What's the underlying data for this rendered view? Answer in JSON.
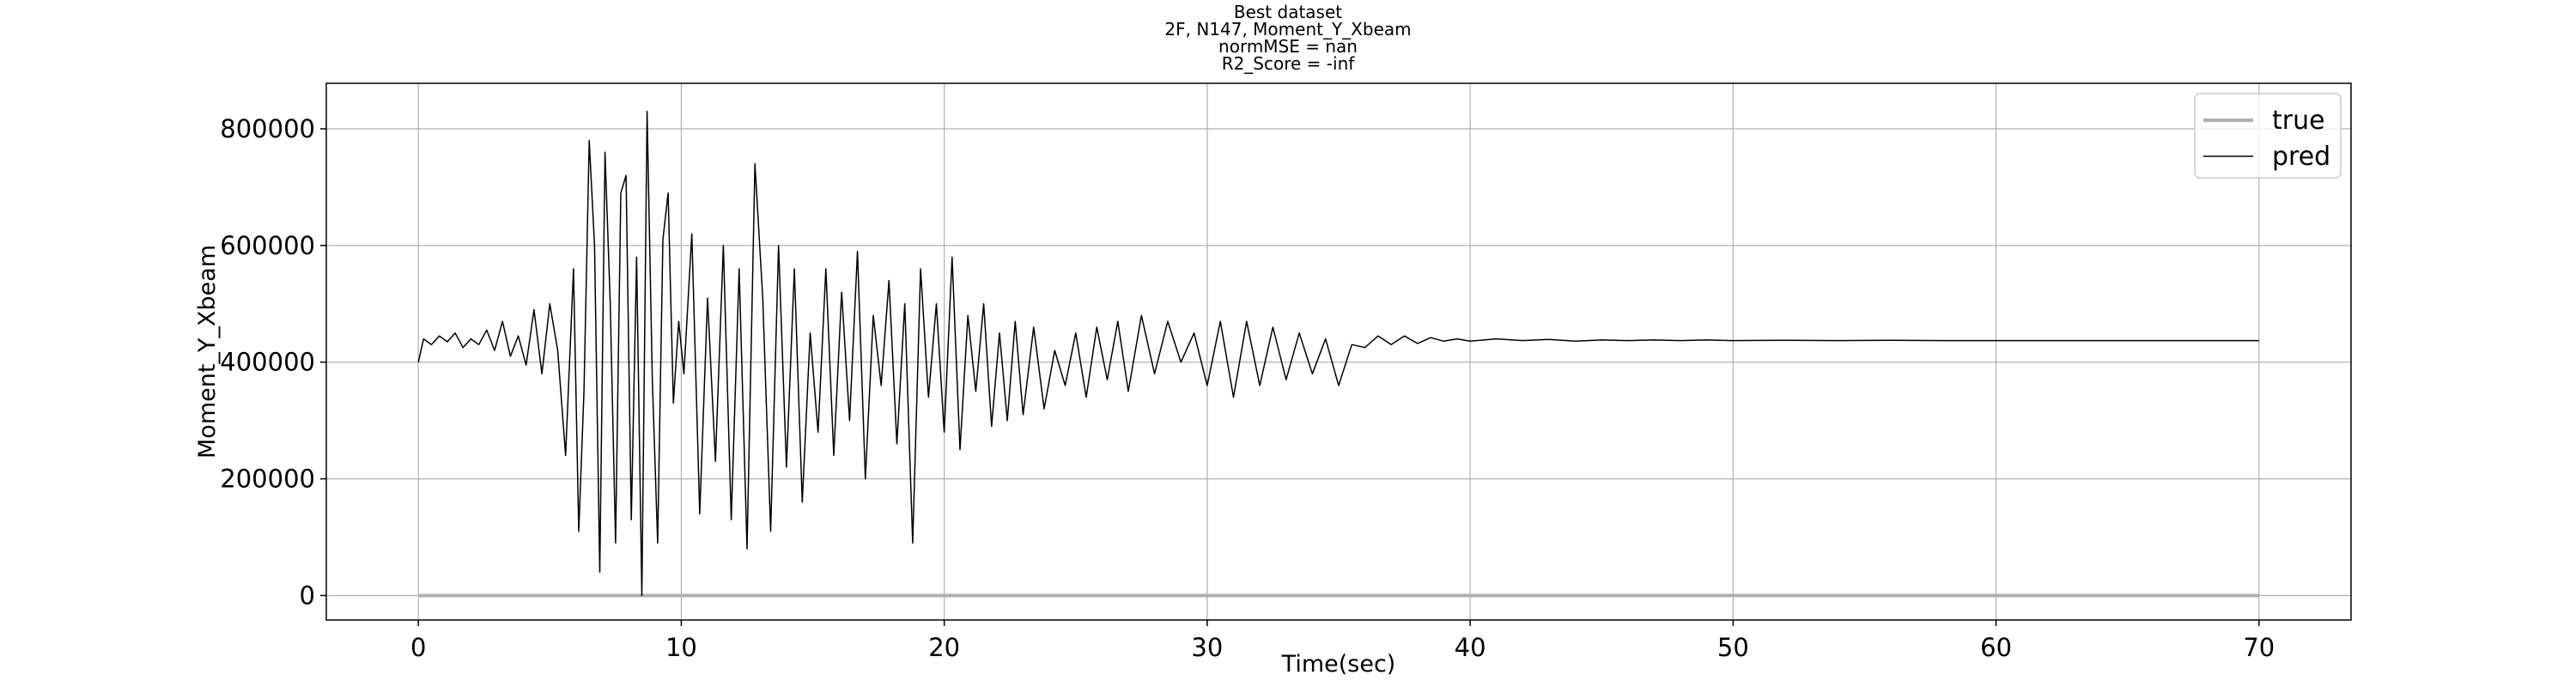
{
  "chart_data": {
    "type": "line",
    "title_lines": [
      "Best dataset",
      "2F, N147, Moment_Y_Xbeam",
      "normMSE = nan",
      "R2_Score = -inf"
    ],
    "xlabel": "Time(sec)",
    "ylabel": "Moment_Y_Xbeam",
    "xlim": [
      -3.5,
      73.5
    ],
    "ylim": [
      -42000,
      878000
    ],
    "xticks": [
      0,
      10,
      20,
      30,
      40,
      50,
      60,
      70
    ],
    "xtick_labels": [
      "0",
      "10",
      "20",
      "30",
      "40",
      "50",
      "60",
      "70"
    ],
    "yticks": [
      0,
      200000,
      400000,
      600000,
      800000
    ],
    "ytick_labels": [
      "0",
      "200000",
      "400000",
      "600000",
      "800000"
    ],
    "grid": true,
    "legend": {
      "position": "top-right",
      "entries": [
        "true",
        "pred"
      ]
    },
    "colors": {
      "true": "#b0b0b0",
      "pred": "#000000"
    },
    "series": [
      {
        "name": "true",
        "x": [
          0,
          70
        ],
        "y": [
          0,
          0
        ]
      },
      {
        "name": "pred",
        "x": [
          0.0,
          0.2,
          0.5,
          0.8,
          1.1,
          1.4,
          1.7,
          2.0,
          2.3,
          2.6,
          2.9,
          3.2,
          3.5,
          3.8,
          4.1,
          4.4,
          4.7,
          5.0,
          5.3,
          5.6,
          5.9,
          6.1,
          6.3,
          6.5,
          6.7,
          6.9,
          7.1,
          7.3,
          7.5,
          7.7,
          7.9,
          8.1,
          8.3,
          8.5,
          8.7,
          8.9,
          9.1,
          9.3,
          9.5,
          9.7,
          9.9,
          10.1,
          10.4,
          10.7,
          11.0,
          11.3,
          11.6,
          11.9,
          12.2,
          12.5,
          12.8,
          13.1,
          13.4,
          13.7,
          14.0,
          14.3,
          14.6,
          14.9,
          15.2,
          15.5,
          15.8,
          16.1,
          16.4,
          16.7,
          17.0,
          17.3,
          17.6,
          17.9,
          18.2,
          18.5,
          18.8,
          19.1,
          19.4,
          19.7,
          20.0,
          20.3,
          20.6,
          20.9,
          21.2,
          21.5,
          21.8,
          22.1,
          22.4,
          22.7,
          23.0,
          23.4,
          23.8,
          24.2,
          24.6,
          25.0,
          25.4,
          25.8,
          26.2,
          26.6,
          27.0,
          27.5,
          28.0,
          28.5,
          29.0,
          29.5,
          30.0,
          30.5,
          31.0,
          31.5,
          32.0,
          32.5,
          33.0,
          33.5,
          34.0,
          34.5,
          35.0,
          35.5,
          36.0,
          36.5,
          37.0,
          37.5,
          38.0,
          38.5,
          39.0,
          39.5,
          40.0,
          41.0,
          42.0,
          43.0,
          44.0,
          45.0,
          46.0,
          47.0,
          48.0,
          49.0,
          50.0,
          52.0,
          54.0,
          56.0,
          58.0,
          60.0,
          62.0,
          64.0,
          66.0,
          68.0,
          70.0
        ],
        "y": [
          400000,
          440000,
          430000,
          445000,
          435000,
          450000,
          425000,
          440000,
          430000,
          455000,
          420000,
          470000,
          410000,
          445000,
          395000,
          490000,
          380000,
          500000,
          420000,
          240000,
          560000,
          110000,
          350000,
          780000,
          600000,
          40000,
          760000,
          500000,
          90000,
          690000,
          720000,
          130000,
          580000,
          0,
          830000,
          370000,
          90000,
          610000,
          690000,
          330000,
          470000,
          380000,
          620000,
          140000,
          510000,
          230000,
          600000,
          130000,
          560000,
          80000,
          740000,
          510000,
          110000,
          600000,
          220000,
          560000,
          160000,
          450000,
          280000,
          560000,
          240000,
          520000,
          300000,
          590000,
          200000,
          480000,
          360000,
          540000,
          260000,
          500000,
          90000,
          560000,
          340000,
          500000,
          280000,
          580000,
          250000,
          480000,
          350000,
          500000,
          290000,
          450000,
          300000,
          470000,
          310000,
          460000,
          320000,
          420000,
          360000,
          450000,
          340000,
          460000,
          370000,
          470000,
          350000,
          480000,
          380000,
          470000,
          400000,
          450000,
          360000,
          470000,
          340000,
          470000,
          360000,
          460000,
          370000,
          450000,
          380000,
          440000,
          360000,
          430000,
          425000,
          445000,
          430000,
          445000,
          432000,
          442000,
          436000,
          440000,
          436000,
          440000,
          437000,
          439000,
          436000,
          438000,
          437000,
          438000,
          437000,
          438000,
          437000,
          437500,
          437000,
          437500,
          437000,
          437000,
          437000,
          437000,
          437000,
          437000,
          437000
        ]
      }
    ]
  }
}
